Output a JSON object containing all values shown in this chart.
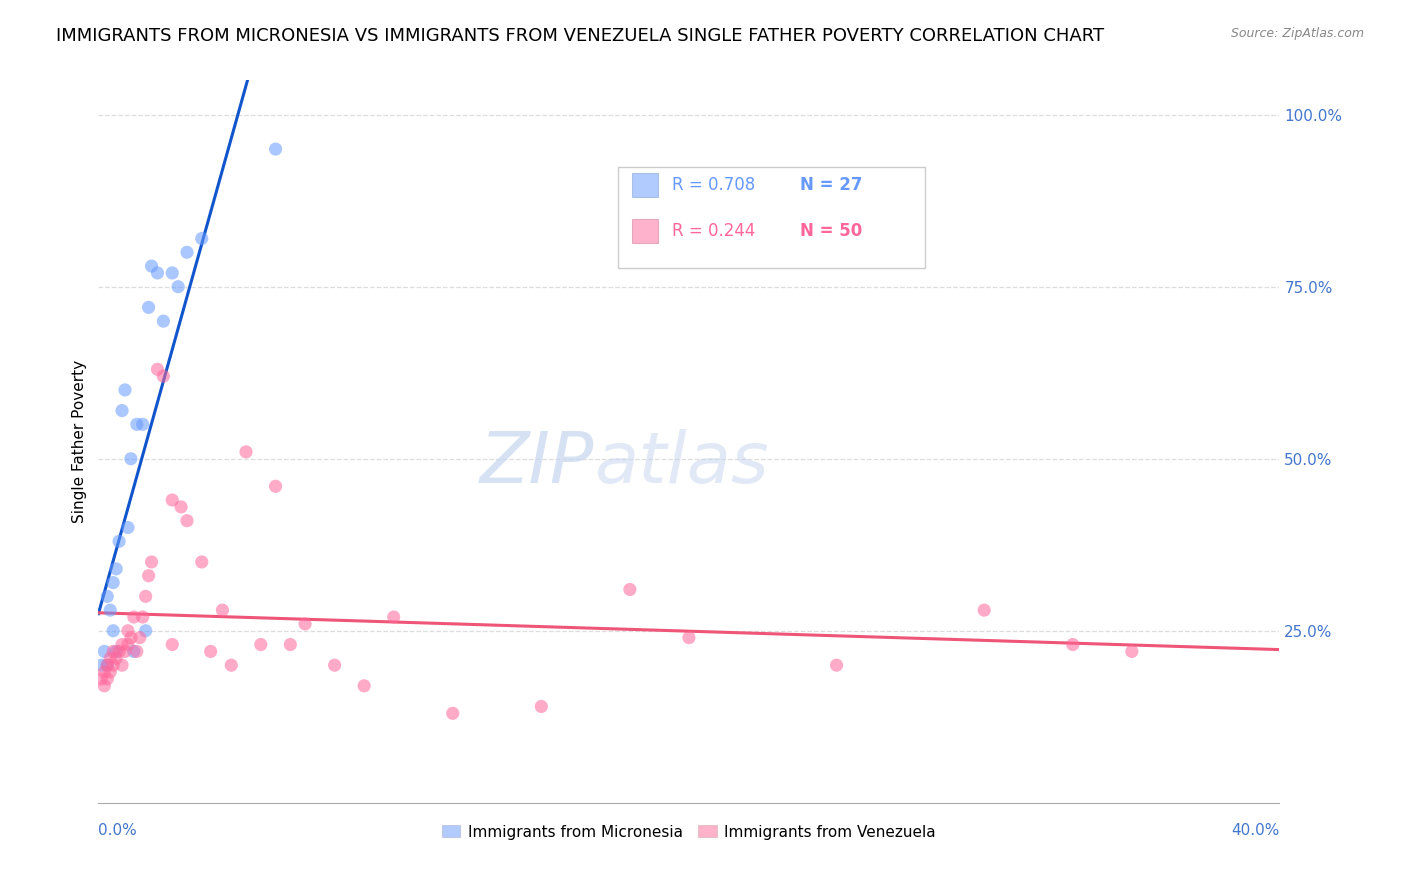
{
  "title": "IMMIGRANTS FROM MICRONESIA VS IMMIGRANTS FROM VENEZUELA SINGLE FATHER POVERTY CORRELATION CHART",
  "source": "Source: ZipAtlas.com",
  "ylabel": "Single Father Poverty",
  "right_yticks": [
    "100.0%",
    "75.0%",
    "50.0%",
    "25.0%"
  ],
  "right_ytick_vals": [
    1.0,
    0.75,
    0.5,
    0.25
  ],
  "watermark_zip": "ZIP",
  "watermark_atlas": "atlas",
  "micronesia_color": "#6699ff",
  "venezuela_color": "#ff6699",
  "micronesia_x": [
    0.001,
    0.002,
    0.003,
    0.003,
    0.004,
    0.005,
    0.005,
    0.006,
    0.006,
    0.007,
    0.008,
    0.009,
    0.01,
    0.011,
    0.012,
    0.013,
    0.015,
    0.016,
    0.017,
    0.018,
    0.02,
    0.022,
    0.025,
    0.027,
    0.03,
    0.035,
    0.06
  ],
  "micronesia_y": [
    0.2,
    0.22,
    0.3,
    0.2,
    0.28,
    0.32,
    0.25,
    0.34,
    0.22,
    0.38,
    0.57,
    0.6,
    0.4,
    0.5,
    0.22,
    0.55,
    0.55,
    0.25,
    0.72,
    0.78,
    0.77,
    0.7,
    0.77,
    0.75,
    0.8,
    0.82,
    0.95
  ],
  "venezuela_x": [
    0.001,
    0.002,
    0.002,
    0.003,
    0.003,
    0.004,
    0.004,
    0.005,
    0.005,
    0.006,
    0.007,
    0.008,
    0.008,
    0.009,
    0.01,
    0.01,
    0.011,
    0.012,
    0.013,
    0.014,
    0.015,
    0.016,
    0.017,
    0.018,
    0.02,
    0.022,
    0.025,
    0.025,
    0.028,
    0.03,
    0.035,
    0.038,
    0.042,
    0.045,
    0.05,
    0.055,
    0.06,
    0.065,
    0.07,
    0.08,
    0.09,
    0.1,
    0.12,
    0.15,
    0.18,
    0.2,
    0.25,
    0.3,
    0.33,
    0.35
  ],
  "venezuela_y": [
    0.18,
    0.19,
    0.17,
    0.18,
    0.2,
    0.19,
    0.21,
    0.2,
    0.22,
    0.21,
    0.22,
    0.2,
    0.23,
    0.22,
    0.23,
    0.25,
    0.24,
    0.27,
    0.22,
    0.24,
    0.27,
    0.3,
    0.33,
    0.35,
    0.63,
    0.62,
    0.23,
    0.44,
    0.43,
    0.41,
    0.35,
    0.22,
    0.28,
    0.2,
    0.51,
    0.23,
    0.46,
    0.23,
    0.26,
    0.2,
    0.17,
    0.27,
    0.13,
    0.14,
    0.31,
    0.24,
    0.2,
    0.28,
    0.23,
    0.22
  ],
  "xlim": [
    0.0,
    0.4
  ],
  "ylim": [
    0.0,
    1.05
  ],
  "background_color": "#ffffff",
  "grid_color": "#dddddd",
  "right_axis_color": "#4477cc",
  "title_fontsize": 13,
  "axis_label_fontsize": 11,
  "tick_fontsize": 11,
  "legend_R1": "R = 0.708",
  "legend_N1": "N = 27",
  "legend_R2": "R = 0.244",
  "legend_N2": "N = 50"
}
